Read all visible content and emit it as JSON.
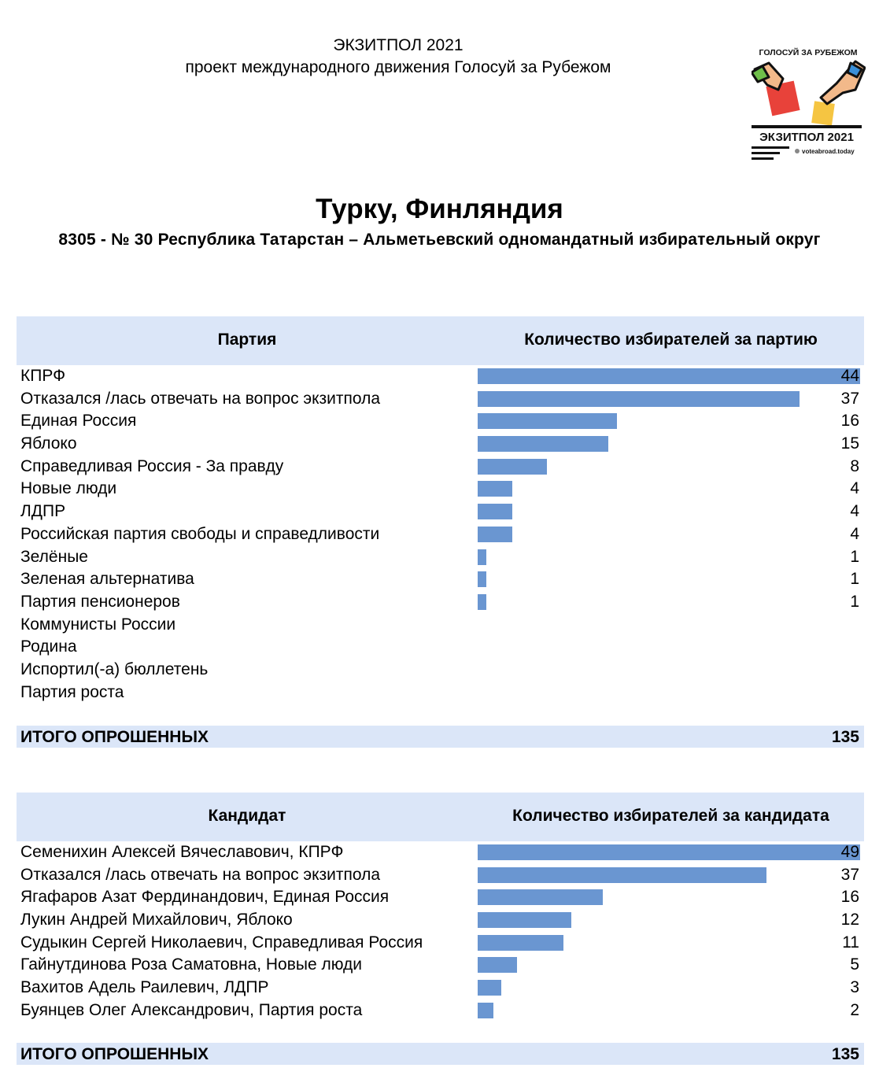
{
  "header": {
    "line1": "ЭКЗИТПОЛ 2021",
    "line2": "проект международного движения Голосуй за Рубежом"
  },
  "logo": {
    "top_text": "ГОЛОСУЙ ЗА РУБЕЖОМ",
    "main_text": "ЭКЗИТПОЛ 2021",
    "site_text": "voteabroad.today"
  },
  "title": "Турку, Финляндия",
  "subtitle": "8305 - № 30 Республика Татарстан – Альметьевский одномандатный избирательный округ",
  "colors": {
    "bar": "#6a96d1",
    "header_bg": "#dbe6f8"
  },
  "chart_data": [
    {
      "type": "bar",
      "orientation": "horizontal",
      "column_label": "Партия",
      "value_label": "Количество избирателей за партию",
      "categories": [
        "КПРФ",
        "Отказался /лась отвечать на вопрос экзитпола",
        "Единая Россия",
        "Яблоко",
        "Справедливая Россия - За правду",
        "Новые люди",
        "ЛДПР",
        "Российская партия свободы и справедливости",
        "Зелёные",
        "Зеленая альтернатива",
        "Партия пенсионеров",
        "Коммунисты России",
        "Родина",
        "Испортил(-а) бюллетень",
        "Партия роста"
      ],
      "values": [
        44,
        37,
        16,
        15,
        8,
        4,
        4,
        4,
        1,
        1,
        1,
        null,
        null,
        null,
        null
      ],
      "total_label": "ИТОГО ОПРОШЕННЫХ",
      "total": 135
    },
    {
      "type": "bar",
      "orientation": "horizontal",
      "column_label": "Кандидат",
      "value_label": "Количество избирателей за кандидата",
      "categories": [
        "Семенихин Алексей Вячеславович, КПРФ",
        "Отказался /лась отвечать на вопрос экзитпола",
        "Ягафаров Азат Фердинандович, Единая Россия",
        "Лукин Андрей Михайлович, Яблоко",
        "Судыкин Сергей Николаевич, Справедливая Россия",
        "Гайнутдинова Роза Саматовна, Новые люди",
        "Вахитов Адель Раилевич, ЛДПР",
        "Буянцев Олег Александрович, Партия роста"
      ],
      "values": [
        49,
        37,
        16,
        12,
        11,
        5,
        3,
        2
      ],
      "total_label": "ИТОГО ОПРОШЕННЫХ",
      "total": 135
    }
  ]
}
